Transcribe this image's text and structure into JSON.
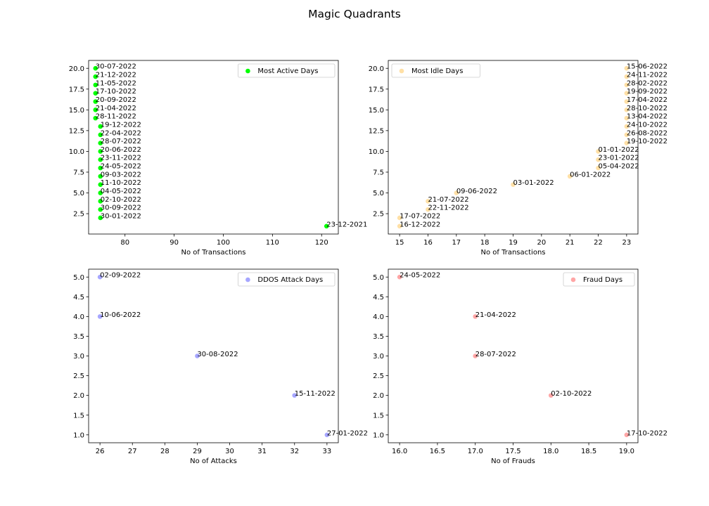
{
  "title": "Magic Quadrants",
  "chart_data": [
    {
      "type": "scatter",
      "xlabel": "No of Transactions",
      "ylabel": "",
      "xlim": [
        72.6,
        123.4
      ],
      "ylim": [
        0.05,
        20.95
      ],
      "xticks": [
        80,
        90,
        100,
        110,
        120
      ],
      "yticks": [
        2.5,
        5.0,
        7.5,
        10.0,
        12.5,
        15.0,
        17.5,
        20.0
      ],
      "xtick_labels": [
        "80",
        "90",
        "100",
        "110",
        "120"
      ],
      "ytick_labels": [
        "2.5",
        "5.0",
        "7.5",
        "10.0",
        "12.5",
        "15.0",
        "17.5",
        "20.0"
      ],
      "grid": false,
      "legend": "upper right",
      "series": [
        {
          "name": "Most Active Days",
          "color": "#00ff00",
          "opacity": 1.0,
          "points": [
            {
              "x": 74,
              "y": 20,
              "label": "30-07-2022"
            },
            {
              "x": 74,
              "y": 19,
              "label": "21-12-2022"
            },
            {
              "x": 74,
              "y": 18,
              "label": "11-05-2022"
            },
            {
              "x": 74,
              "y": 17,
              "label": "17-10-2022"
            },
            {
              "x": 74,
              "y": 16,
              "label": "20-09-2022"
            },
            {
              "x": 74,
              "y": 15,
              "label": "21-04-2022"
            },
            {
              "x": 74,
              "y": 14,
              "label": "28-11-2022"
            },
            {
              "x": 75,
              "y": 13,
              "label": "19-12-2022"
            },
            {
              "x": 75,
              "y": 12,
              "label": "22-04-2022"
            },
            {
              "x": 75,
              "y": 11,
              "label": "28-07-2022"
            },
            {
              "x": 75,
              "y": 10,
              "label": "20-06-2022"
            },
            {
              "x": 75,
              "y": 9,
              "label": "23-11-2022"
            },
            {
              "x": 75,
              "y": 8,
              "label": "24-05-2022"
            },
            {
              "x": 75,
              "y": 7,
              "label": "09-03-2022"
            },
            {
              "x": 75,
              "y": 6,
              "label": "11-10-2022"
            },
            {
              "x": 75,
              "y": 5,
              "label": "04-05-2022"
            },
            {
              "x": 75,
              "y": 4,
              "label": "02-10-2022"
            },
            {
              "x": 75,
              "y": 3,
              "label": "30-09-2022"
            },
            {
              "x": 75,
              "y": 2,
              "label": "30-01-2022"
            },
            {
              "x": 121,
              "y": 1,
              "label": "23-12-2021"
            }
          ]
        }
      ]
    },
    {
      "type": "scatter",
      "xlabel": "No of Transactions",
      "ylabel": "",
      "xlim": [
        14.6,
        23.4
      ],
      "ylim": [
        0.05,
        20.95
      ],
      "xticks": [
        15,
        16,
        17,
        18,
        19,
        20,
        21,
        22,
        23
      ],
      "yticks": [
        2.5,
        5.0,
        7.5,
        10.0,
        12.5,
        15.0,
        17.5,
        20.0
      ],
      "xtick_labels": [
        "15",
        "16",
        "17",
        "18",
        "19",
        "20",
        "21",
        "22",
        "23"
      ],
      "ytick_labels": [
        "2.5",
        "5.0",
        "7.5",
        "10.0",
        "12.5",
        "15.0",
        "17.5",
        "20.0"
      ],
      "grid": false,
      "legend": "upper left",
      "series": [
        {
          "name": "Most Idle Days",
          "color": "#ffa500",
          "opacity": 0.35,
          "points": [
            {
              "x": 23,
              "y": 20,
              "label": "15-06-2022"
            },
            {
              "x": 23,
              "y": 19,
              "label": "24-11-2022"
            },
            {
              "x": 23,
              "y": 18,
              "label": "28-02-2022"
            },
            {
              "x": 23,
              "y": 17,
              "label": "19-09-2022"
            },
            {
              "x": 23,
              "y": 16,
              "label": "17-04-2022"
            },
            {
              "x": 23,
              "y": 15,
              "label": "28-10-2022"
            },
            {
              "x": 23,
              "y": 14,
              "label": "13-04-2022"
            },
            {
              "x": 23,
              "y": 13,
              "label": "24-10-2022"
            },
            {
              "x": 23,
              "y": 12,
              "label": "26-08-2022"
            },
            {
              "x": 23,
              "y": 11,
              "label": "19-10-2022"
            },
            {
              "x": 22,
              "y": 10,
              "label": "01-01-2022"
            },
            {
              "x": 22,
              "y": 9,
              "label": "23-01-2022"
            },
            {
              "x": 22,
              "y": 8,
              "label": "05-04-2022"
            },
            {
              "x": 21,
              "y": 7,
              "label": "06-01-2022"
            },
            {
              "x": 19,
              "y": 6,
              "label": "03-01-2022"
            },
            {
              "x": 17,
              "y": 5,
              "label": "09-06-2022"
            },
            {
              "x": 16,
              "y": 4,
              "label": "21-07-2022"
            },
            {
              "x": 16,
              "y": 3,
              "label": "22-11-2022"
            },
            {
              "x": 15,
              "y": 2,
              "label": "17-07-2022"
            },
            {
              "x": 15,
              "y": 1,
              "label": "16-12-2022"
            }
          ]
        }
      ]
    },
    {
      "type": "scatter",
      "xlabel": "No of Attacks",
      "ylabel": "",
      "xlim": [
        25.65,
        33.35
      ],
      "ylim": [
        0.8,
        5.2
      ],
      "xticks": [
        26,
        27,
        28,
        29,
        30,
        31,
        32,
        33
      ],
      "yticks": [
        1.0,
        1.5,
        2.0,
        2.5,
        3.0,
        3.5,
        4.0,
        4.5,
        5.0
      ],
      "xtick_labels": [
        "26",
        "27",
        "28",
        "29",
        "30",
        "31",
        "32",
        "33"
      ],
      "ytick_labels": [
        "1.0",
        "1.5",
        "2.0",
        "2.5",
        "3.0",
        "3.5",
        "4.0",
        "4.5",
        "5.0"
      ],
      "grid": false,
      "legend": "upper right",
      "series": [
        {
          "name": "DDOS Attack Days",
          "color": "#0000ff",
          "opacity": 0.35,
          "points": [
            {
              "x": 26,
              "y": 5,
              "label": "02-09-2022"
            },
            {
              "x": 26,
              "y": 4,
              "label": "10-06-2022"
            },
            {
              "x": 29,
              "y": 3,
              "label": "30-08-2022"
            },
            {
              "x": 32,
              "y": 2,
              "label": "15-11-2022"
            },
            {
              "x": 33,
              "y": 1,
              "label": "27-01-2022"
            }
          ]
        }
      ]
    },
    {
      "type": "scatter",
      "xlabel": "No of Frauds",
      "ylabel": "",
      "xlim": [
        15.85,
        19.15
      ],
      "ylim": [
        0.8,
        5.2
      ],
      "xticks": [
        16.0,
        16.5,
        17.0,
        17.5,
        18.0,
        18.5,
        19.0
      ],
      "yticks": [
        1.0,
        1.5,
        2.0,
        2.5,
        3.0,
        3.5,
        4.0,
        4.5,
        5.0
      ],
      "xtick_labels": [
        "16.0",
        "16.5",
        "17.0",
        "17.5",
        "18.0",
        "18.5",
        "19.0"
      ],
      "ytick_labels": [
        "1.0",
        "1.5",
        "2.0",
        "2.5",
        "3.0",
        "3.5",
        "4.0",
        "4.5",
        "5.0"
      ],
      "grid": false,
      "legend": "upper right",
      "series": [
        {
          "name": "Fraud Days",
          "color": "#ff0000",
          "opacity": 0.35,
          "points": [
            {
              "x": 16,
              "y": 5,
              "label": "24-05-2022"
            },
            {
              "x": 17,
              "y": 4,
              "label": "21-04-2022"
            },
            {
              "x": 17,
              "y": 3,
              "label": "28-07-2022"
            },
            {
              "x": 18,
              "y": 2,
              "label": "02-10-2022"
            },
            {
              "x": 19,
              "y": 1,
              "label": "17-10-2022"
            }
          ]
        }
      ]
    }
  ]
}
